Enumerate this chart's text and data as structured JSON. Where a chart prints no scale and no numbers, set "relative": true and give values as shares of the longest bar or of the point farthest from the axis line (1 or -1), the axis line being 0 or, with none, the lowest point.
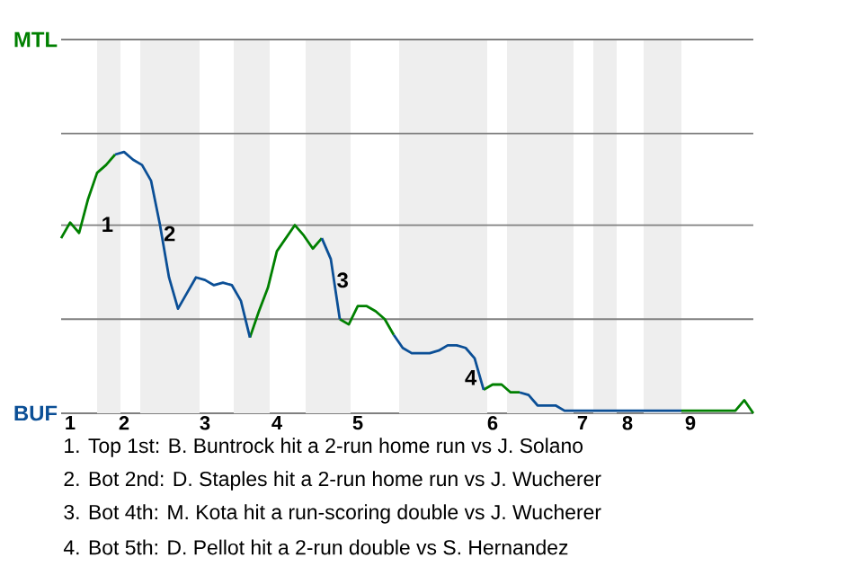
{
  "chart_data": {
    "type": "line",
    "relative": true,
    "categories": [
      null,
      "1",
      null,
      null,
      null,
      null,
      null,
      "2",
      null,
      null,
      null,
      null,
      null,
      null,
      null,
      null,
      "3",
      null,
      null,
      null,
      null,
      null,
      null,
      null,
      "4",
      null,
      null,
      null,
      null,
      null,
      null,
      null,
      null,
      "5",
      null,
      null,
      null,
      null,
      null,
      null,
      null,
      null,
      null,
      null,
      null,
      null,
      null,
      null,
      "6",
      null,
      null,
      null,
      null,
      null,
      null,
      null,
      null,
      null,
      "7",
      null,
      null,
      null,
      null,
      "8",
      null,
      null,
      null,
      null,
      null,
      null,
      "9",
      null,
      null,
      null,
      null,
      null,
      null,
      null
    ],
    "marker": "none",
    "ref_lines": [
      {
        "axis": "y",
        "value": 0.36
      },
      {
        "axis": "y",
        "value": 0.72
      },
      {
        "axis": "y",
        "value": 1.07
      },
      {
        "axis": "y",
        "value": 1.43
      }
    ],
    "series": [
      {
        "color": "#008000",
        "values": [
          0.67,
          0.73,
          0.69,
          0.82,
          0.92,
          0.95,
          0.99,
          null,
          null,
          null,
          null,
          null,
          null,
          null,
          null,
          null,
          null,
          null,
          null,
          null,
          null,
          0.29,
          0.39,
          0.48,
          0.62,
          0.67,
          0.72,
          0.68,
          0.63,
          0.67,
          null,
          0.36,
          0.34,
          0.41,
          0.41,
          0.39,
          0.36,
          0.3,
          null,
          null,
          null,
          null,
          null,
          null,
          null,
          null,
          null,
          0.09,
          0.11,
          0.11,
          0.08,
          0.08,
          null,
          null,
          null,
          null,
          null,
          null,
          null,
          null,
          null,
          null,
          null,
          null,
          null,
          null,
          null,
          null,
          null,
          0.01,
          0.01,
          0.01,
          0.01,
          0.01,
          0.01,
          0.01,
          0.05,
          0
        ]
      },
      {
        "color": "#0b4f96",
        "values": [
          null,
          null,
          null,
          null,
          null,
          null,
          0.99,
          1.0,
          0.97,
          0.95,
          0.89,
          0.72,
          0.52,
          0.4,
          0.46,
          0.52,
          0.51,
          0.49,
          0.5,
          0.49,
          0.43,
          0.29,
          null,
          null,
          null,
          null,
          null,
          null,
          null,
          0.67,
          0.59,
          0.36,
          null,
          null,
          null,
          null,
          null,
          0.3,
          0.25,
          0.23,
          0.23,
          0.23,
          0.24,
          0.26,
          0.26,
          0.25,
          0.21,
          0.09,
          null,
          null,
          null,
          0.08,
          0.07,
          0.03,
          0.03,
          0.03,
          0.01,
          0.01,
          0.01,
          0.01,
          0.01,
          0.01,
          0.01,
          0.01,
          0.01,
          0.01,
          0.01,
          0.01,
          0.01,
          0.01,
          null,
          null,
          null,
          null,
          null,
          null,
          null,
          null
        ]
      }
    ],
    "annotations": [
      "MTL",
      "BUF",
      "1",
      "2",
      "3",
      "4",
      "1. Top 1st: B. Buntrock hit a 2-run home run vs J. Solano",
      "2. Bot 2nd: D. Staples hit a 2-run home run vs J. Wucherer",
      "3. Bot 4th: M. Kota hit a run-scoring double vs J. Wucherer",
      "4. Bot 5th: D. Pellot hit a 2-run double vs S. Hernandez"
    ]
  }
}
